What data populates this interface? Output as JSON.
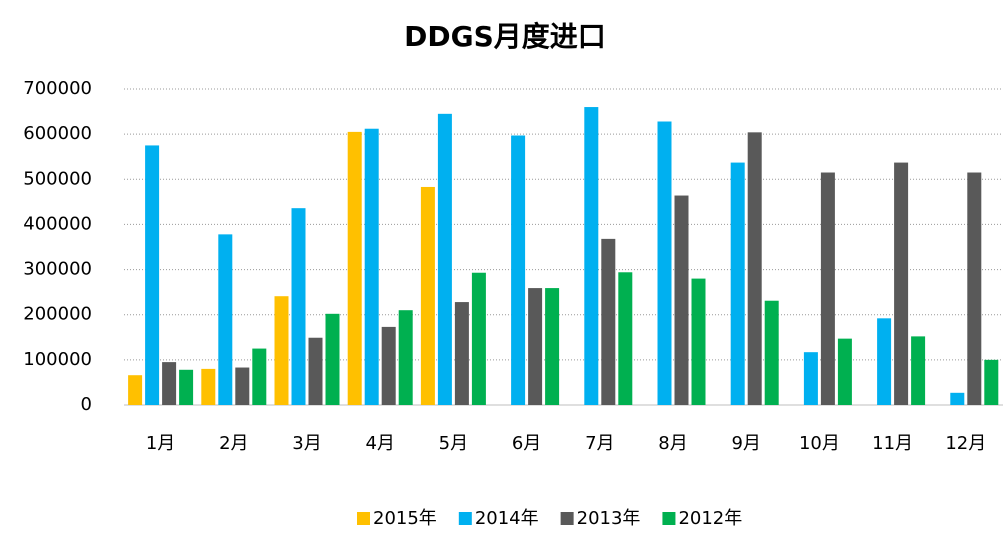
{
  "chart_data": {
    "type": "bar",
    "title": "DDGS月度进口",
    "categories": [
      "1月",
      "2月",
      "3月",
      "4月",
      "5月",
      "6月",
      "7月",
      "8月",
      "9月",
      "10月",
      "11月",
      "12月"
    ],
    "series": [
      {
        "name": "2015年",
        "color": "#FFC000",
        "values": [
          66000,
          80000,
          241000,
          605000,
          483000,
          null,
          null,
          null,
          null,
          null,
          null,
          null
        ]
      },
      {
        "name": "2014年",
        "color": "#00B0F0",
        "values": [
          575000,
          378000,
          436000,
          612000,
          645000,
          597000,
          660000,
          628000,
          537000,
          117000,
          192000,
          27000
        ]
      },
      {
        "name": "2013年",
        "color": "#595959",
        "values": [
          95000,
          83000,
          149000,
          173000,
          228000,
          259000,
          368000,
          464000,
          604000,
          515000,
          537000,
          515000
        ]
      },
      {
        "name": "2012年",
        "color": "#00B050",
        "values": [
          78000,
          125000,
          202000,
          210000,
          293000,
          259000,
          294000,
          280000,
          231000,
          147000,
          152000,
          100000
        ]
      }
    ],
    "ylim": [
      0,
      700000
    ],
    "yticks": [
      0,
      100000,
      200000,
      300000,
      400000,
      500000,
      600000,
      700000
    ],
    "grid": true,
    "legend": "bottom"
  }
}
